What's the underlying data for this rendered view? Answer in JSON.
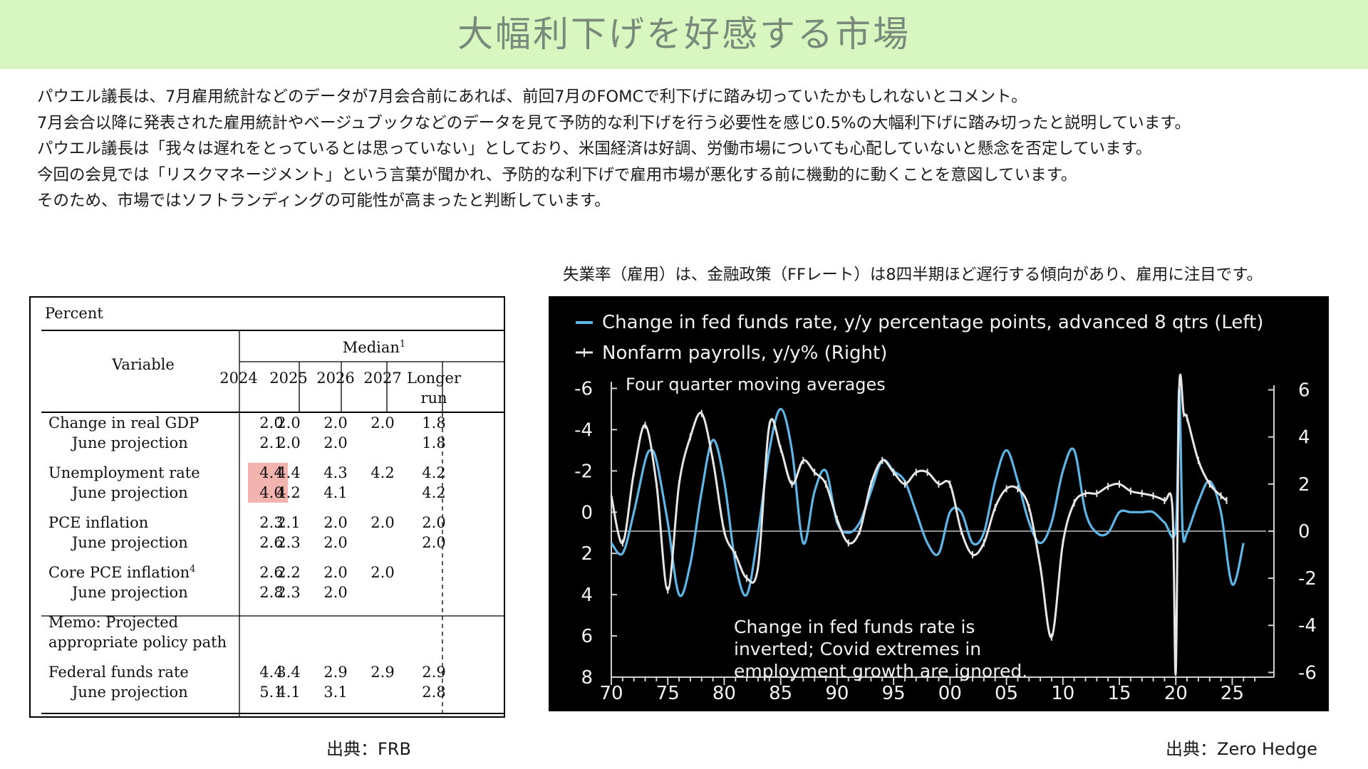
{
  "page": {
    "title": "大幅利下げを好感する市場",
    "paragraphs": [
      "パウエル議長は、7月雇用統計などのデータが7月会合前にあれば、前回7月のFOMCで利下げに踏み切っていたかもしれないとコメント。",
      "7月会合以降に発表された雇用統計やベージュブックなどのデータを見て予防的な利下げを行う必要性を感じ0.5%の大幅利下げに踏み切ったと説明しています。",
      "パウエル議長は「我々は遅れをとっているとは思っていない」としており、米国経済は好調、労働市場についても心配していないと懸念を否定しています。",
      "今回の会見では「リスクマネージメント」という言葉が聞かれ、予防的な利下げで雇用市場が悪化する前に機動的に動くことを意図しています。",
      "そのため、市場ではソフトランディングの可能性が高まったと判断しています。"
    ],
    "chart_caption": "失業率（雇用）は、金融政策（FFレート）は8四半期ほど遅行する傾向があり、雇用に注目です。",
    "source_left": "出典：FRB",
    "source_right": "出典：Zero Hedge"
  },
  "colors": {
    "title_band": "#d8f7c0",
    "highlight": "#f3b3ae",
    "ffr_line": "#5fb6e6",
    "payrolls_line": "#e6e6e6"
  },
  "chart_data": [
    {
      "type": "table",
      "unit_label": "Percent",
      "variable_header": "Variable",
      "median_header": "Median",
      "median_footnote": "1",
      "columns": [
        "2024",
        "2025",
        "2026",
        "2027",
        "Longer run"
      ],
      "rows": [
        {
          "label": "Change in real GDP",
          "values": [
            "2.0",
            "2.0",
            "2.0",
            "2.0",
            "1.8"
          ]
        },
        {
          "label": "June projection",
          "values": [
            "2.1",
            "2.0",
            "2.0",
            "",
            "1.8"
          ]
        },
        {
          "label": "Unemployment rate",
          "values": [
            "4.4",
            "4.4",
            "4.3",
            "4.2",
            "4.2"
          ],
          "highlight_col": 0
        },
        {
          "label": "June projection",
          "values": [
            "4.0",
            "4.2",
            "4.1",
            "",
            "4.2"
          ],
          "highlight_col": 0
        },
        {
          "label": "PCE inflation",
          "values": [
            "2.3",
            "2.1",
            "2.0",
            "2.0",
            "2.0"
          ]
        },
        {
          "label": "June projection",
          "values": [
            "2.6",
            "2.3",
            "2.0",
            "",
            "2.0"
          ]
        },
        {
          "label": "Core PCE inflation",
          "footnote": "4",
          "values": [
            "2.6",
            "2.2",
            "2.0",
            "2.0",
            ""
          ]
        },
        {
          "label": "June projection",
          "values": [
            "2.8",
            "2.3",
            "2.0",
            "",
            ""
          ]
        },
        {
          "label": "Memo: Projected",
          "values": [
            "",
            "",
            "",
            "",
            ""
          ]
        },
        {
          "label": "appropriate policy path",
          "values": [
            "",
            "",
            "",
            "",
            ""
          ]
        },
        {
          "label": "Federal funds rate",
          "values": [
            "4.4",
            "3.4",
            "2.9",
            "2.9",
            "2.9"
          ]
        },
        {
          "label": "June projection",
          "values": [
            "5.1",
            "4.1",
            "3.1",
            "",
            "2.8"
          ]
        }
      ]
    },
    {
      "type": "line",
      "legend": [
        "Change in fed funds rate, y/y percentage points, advanced 8 qtrs (Left)",
        "Nonfarm payrolls, y/y% (Right)"
      ],
      "subtitle": "Four quarter moving averages",
      "annotation": [
        "Change in fed funds rate is",
        "inverted; Covid extremes in",
        "employment growth are ignored."
      ],
      "x_ticks": [
        "70",
        "75",
        "80",
        "85",
        "90",
        "95",
        "00",
        "05",
        "10",
        "15",
        "20",
        "25"
      ],
      "x_tick_values": [
        1970,
        1975,
        1980,
        1985,
        1990,
        1995,
        2000,
        2005,
        2010,
        2015,
        2020,
        2025
      ],
      "xlim": [
        1970,
        2028
      ],
      "y_left": {
        "ticks": [
          "-6",
          "-4",
          "-2",
          "0",
          "2",
          "4",
          "6",
          "8"
        ],
        "tick_values": [
          -6,
          -4,
          -2,
          0,
          2,
          4,
          6,
          8
        ],
        "lim": [
          -6.5,
          8
        ],
        "inverted": true
      },
      "y_right": {
        "ticks": [
          "6",
          "4",
          "2",
          "0",
          "-2",
          "-4",
          "-6"
        ],
        "tick_values": [
          6,
          4,
          2,
          0,
          -2,
          -4,
          -6
        ],
        "lim": [
          -6.2,
          6.5
        ]
      },
      "series": [
        {
          "name": "Change in fed funds rate, y/y percentage points, advanced 8 qtrs (Left)",
          "axis": "left",
          "x": [
            1970,
            1971,
            1972,
            1973,
            1973.5,
            1974,
            1975,
            1976,
            1977,
            1978,
            1979,
            1980,
            1981,
            1982,
            1983,
            1984,
            1985,
            1986,
            1987,
            1988,
            1989,
            1990,
            1991,
            1992,
            1993,
            1994,
            1995,
            1996,
            1997,
            1998,
            1999,
            2000,
            2001,
            2002,
            2003,
            2004,
            2005,
            2006,
            2007,
            2008,
            2009,
            2010,
            2011,
            2012,
            2013,
            2014,
            2015,
            2016,
            2017,
            2018,
            2019,
            2020,
            2020.3,
            2020.6,
            2021,
            2022,
            2023,
            2024,
            2025,
            2026
          ],
          "y": [
            1.5,
            2.0,
            0.0,
            -2.5,
            -3.0,
            -2.5,
            0.5,
            4.0,
            2.5,
            -1.0,
            -3.5,
            -1.5,
            2.5,
            4.0,
            1.0,
            -3.0,
            -5.0,
            -3.0,
            1.5,
            -1.0,
            -2.0,
            0.5,
            1.0,
            0.5,
            -1.0,
            -2.5,
            -2.0,
            -1.5,
            0.0,
            1.5,
            2.0,
            0.0,
            0.0,
            1.5,
            1.0,
            -1.5,
            -3.0,
            -1.5,
            0.5,
            1.5,
            0.5,
            -2.0,
            -3.0,
            0.0,
            1.0,
            1.0,
            0.0,
            0.0,
            0.0,
            0.0,
            0.5,
            0.8,
            -6.0,
            0.8,
            1.0,
            -0.5,
            -1.5,
            0.0,
            3.5,
            1.5
          ]
        },
        {
          "name": "Nonfarm payrolls, y/y% (Right)",
          "axis": "right",
          "x": [
            1970,
            1971,
            1972,
            1973,
            1974,
            1975,
            1976,
            1977,
            1978,
            1979,
            1980,
            1981,
            1982,
            1983,
            1984,
            1985,
            1986,
            1987,
            1988,
            1989,
            1990,
            1991,
            1992,
            1993,
            1994,
            1995,
            1996,
            1997,
            1998,
            1999,
            2000,
            2001,
            2002,
            2003,
            2004,
            2005,
            2006,
            2007,
            2008,
            2009,
            2010,
            2011,
            2012,
            2013,
            2014,
            2015,
            2016,
            2017,
            2018,
            2019,
            2019.7,
            2020,
            2020.3,
            2020.7,
            2021,
            2022,
            2023,
            2024,
            2024.5
          ],
          "y": [
            1.5,
            -0.5,
            2.5,
            4.5,
            2.0,
            -2.5,
            2.0,
            4.0,
            5.0,
            3.0,
            0.0,
            -1.0,
            -2.0,
            -1.5,
            4.5,
            3.5,
            2.0,
            3.0,
            2.5,
            2.0,
            0.5,
            -0.5,
            0.0,
            2.0,
            3.0,
            2.5,
            2.0,
            2.5,
            2.5,
            2.0,
            2.0,
            0.0,
            -1.0,
            -0.5,
            1.0,
            1.8,
            1.8,
            1.0,
            -1.5,
            -4.5,
            -0.5,
            1.2,
            1.6,
            1.6,
            1.9,
            2.0,
            1.7,
            1.6,
            1.5,
            1.3,
            1.0,
            -6.0,
            6.0,
            5.0,
            4.8,
            3.0,
            2.0,
            1.5,
            1.3
          ]
        }
      ]
    }
  ]
}
